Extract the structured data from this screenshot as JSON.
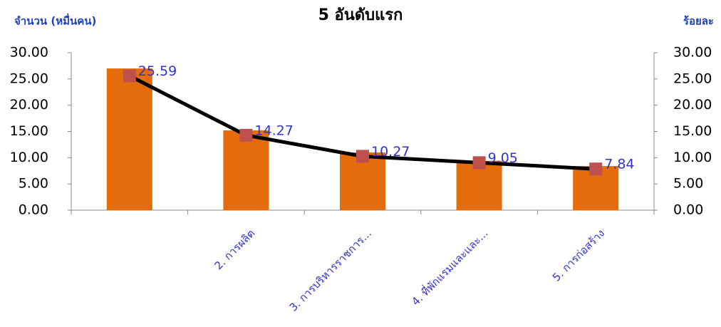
{
  "chart_data": {
    "type": "bar",
    "title": "5 อันดับแรก",
    "y_label": "จำนวน (หมื่นคน)",
    "y2_label": "ร้อยละ",
    "categories": [
      null,
      "2. การผลิต",
      "3. การบริหารราชการ...",
      "4. ที่พักแรมและและ...",
      "5. การก่อสร้าง"
    ],
    "series": [
      {
        "type": "bar",
        "color": "#e46c0a",
        "values": [
          27.0,
          15.2,
          11.0,
          9.4,
          8.4
        ]
      },
      {
        "type": "line",
        "axis": "y2",
        "color": "#000000",
        "marker_color": "#c0504d",
        "label_color": "#3333cc",
        "values": [
          25.59,
          14.27,
          10.27,
          9.05,
          7.84
        ]
      }
    ],
    "ylim": [
      0,
      30
    ],
    "yticks": [
      {
        "value": 0,
        "label": "0.00"
      },
      {
        "value": 5,
        "label": "5.00"
      },
      {
        "value": 10,
        "label": "10.00"
      },
      {
        "value": 15,
        "label": "15.00"
      },
      {
        "value": 20,
        "label": "20.00"
      },
      {
        "value": 25,
        "label": "25.00"
      },
      {
        "value": 30,
        "label": "30.00"
      }
    ],
    "y2lim": [
      0,
      30
    ],
    "y2ticks": [
      {
        "value": 0,
        "label": "0.00"
      },
      {
        "value": 5,
        "label": "5.00"
      },
      {
        "value": 10,
        "label": "10.00"
      },
      {
        "value": 15,
        "label": "15.00"
      },
      {
        "value": 20,
        "label": "20.00"
      },
      {
        "value": 25,
        "label": "25.00"
      },
      {
        "value": 30,
        "label": "30.00"
      }
    ],
    "grid": false
  }
}
